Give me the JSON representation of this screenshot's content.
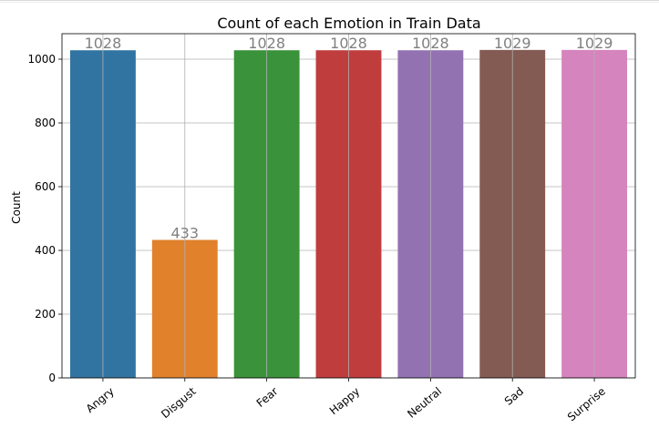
{
  "chart_data": {
    "type": "bar",
    "title": "Count of each Emotion in Train Data",
    "xlabel": "",
    "ylabel": "Count",
    "categories": [
      "Angry",
      "Disgust",
      "Fear",
      "Happy",
      "Neutral",
      "Sad",
      "Surprise"
    ],
    "values": [
      1028,
      433,
      1028,
      1028,
      1028,
      1029,
      1029
    ],
    "data_labels": [
      "1028",
      "433",
      "1028",
      "1028",
      "1028",
      "1029",
      "1029"
    ],
    "colors": [
      "#3274a1",
      "#e1812c",
      "#3a923a",
      "#c03d3e",
      "#9372b2",
      "#845b53",
      "#d684bd"
    ],
    "ylim": [
      0,
      1080
    ],
    "yticks": [
      0,
      200,
      400,
      600,
      800,
      1000
    ],
    "ytick_labels": [
      "0",
      "200",
      "400",
      "600",
      "800",
      "1000"
    ],
    "grid": true,
    "xtick_rotation": -40
  }
}
